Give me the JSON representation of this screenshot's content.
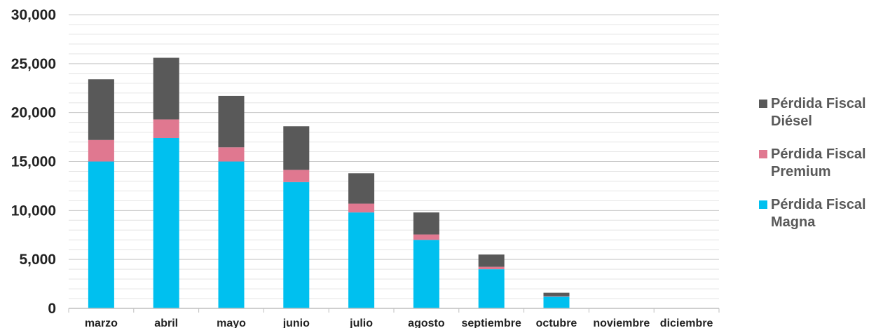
{
  "chart_data": {
    "type": "bar",
    "stacked": true,
    "title": "",
    "xlabel": "",
    "ylabel": "",
    "ylim": [
      0,
      30000
    ],
    "yticks": [
      "0",
      "5,000",
      "10,000",
      "15,000",
      "20,000",
      "25,000",
      "30,000"
    ],
    "ytick_values": [
      0,
      5000,
      10000,
      15000,
      20000,
      25000,
      30000
    ],
    "grid": true,
    "legend_position": "right",
    "categories": [
      "marzo",
      "abril",
      "mayo",
      "junio",
      "julio",
      "agosto",
      "septiembre",
      "octubre",
      "noviembre",
      "diciembre"
    ],
    "series": [
      {
        "name": "Pérdida Fiscal Magna",
        "color": "#00c0ef",
        "values": [
          15000,
          17400,
          15000,
          12900,
          9800,
          7000,
          4000,
          1200,
          0,
          0
        ]
      },
      {
        "name": "Pérdida Fiscal Premium",
        "color": "#e07890",
        "values": [
          2200,
          1900,
          1450,
          1250,
          900,
          550,
          250,
          50,
          0,
          0
        ]
      },
      {
        "name": "Pérdida Fiscal Diésel",
        "color": "#595959",
        "values": [
          6200,
          6300,
          5250,
          4450,
          3100,
          2250,
          1250,
          350,
          0,
          0
        ]
      }
    ]
  }
}
